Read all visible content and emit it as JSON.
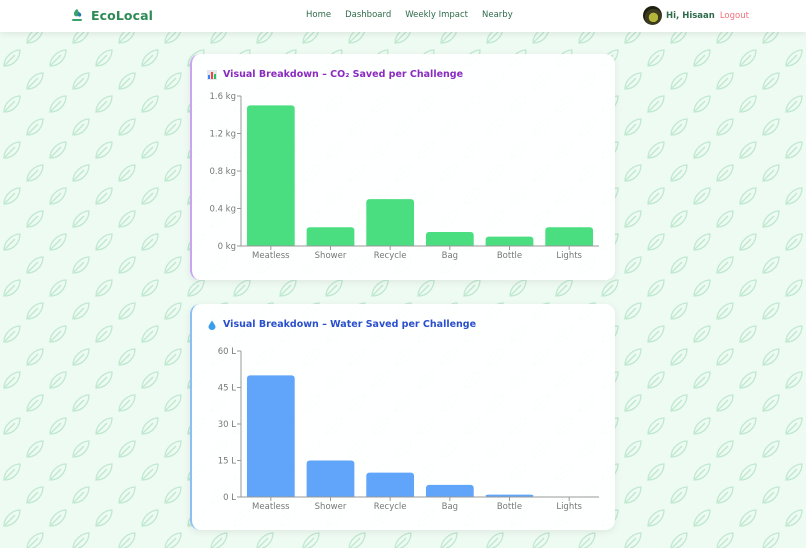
{
  "navbar": {
    "brand": "EcoLocal",
    "links": [
      "Home",
      "Dashboard",
      "Weekly Impact",
      "Nearby"
    ],
    "greeting": "Hi, Hisaan",
    "logout": "Logout"
  },
  "colors": {
    "brand": "#2e8b57",
    "co2_bar": "#4ade80",
    "water_bar": "#60a5fa",
    "co2_title": "#8a2bc0",
    "water_title": "#2a4fcc",
    "logout": "#f0707a"
  },
  "cards": {
    "co2": {
      "title": "Visual Breakdown – CO₂ Saved per Challenge",
      "icon": "bar-chart-icon"
    },
    "water": {
      "title": "Visual Breakdown – Water Saved per Challenge",
      "icon": "droplet-icon"
    }
  },
  "chart_data": [
    {
      "type": "bar",
      "title": "Visual Breakdown – CO₂ Saved per Challenge",
      "categories": [
        "Meatless",
        "Shower",
        "Recycle",
        "Bag",
        "Bottle",
        "Lights"
      ],
      "values": [
        1.5,
        0.2,
        0.5,
        0.15,
        0.1,
        0.2
      ],
      "unit": "kg",
      "xlabel": "",
      "ylabel": "",
      "ylim": [
        0,
        1.6
      ],
      "yticks": [
        0,
        0.4,
        0.8,
        1.2,
        1.6
      ],
      "ytick_labels": [
        "0 kg",
        "0.4 kg",
        "0.8 kg",
        "1.2 kg",
        "1.6 kg"
      ],
      "grid": false,
      "legend": null,
      "color": "#4ade80"
    },
    {
      "type": "bar",
      "title": "Visual Breakdown – Water Saved per Challenge",
      "categories": [
        "Meatless",
        "Shower",
        "Recycle",
        "Bag",
        "Bottle",
        "Lights"
      ],
      "values": [
        50,
        15,
        10,
        5,
        1,
        0
      ],
      "unit": "L",
      "xlabel": "",
      "ylabel": "",
      "ylim": [
        0,
        60
      ],
      "yticks": [
        0,
        15,
        30,
        45,
        60
      ],
      "ytick_labels": [
        "0 L",
        "15 L",
        "30 L",
        "45 L",
        "60 L"
      ],
      "grid": false,
      "legend": null,
      "color": "#60a5fa"
    }
  ]
}
